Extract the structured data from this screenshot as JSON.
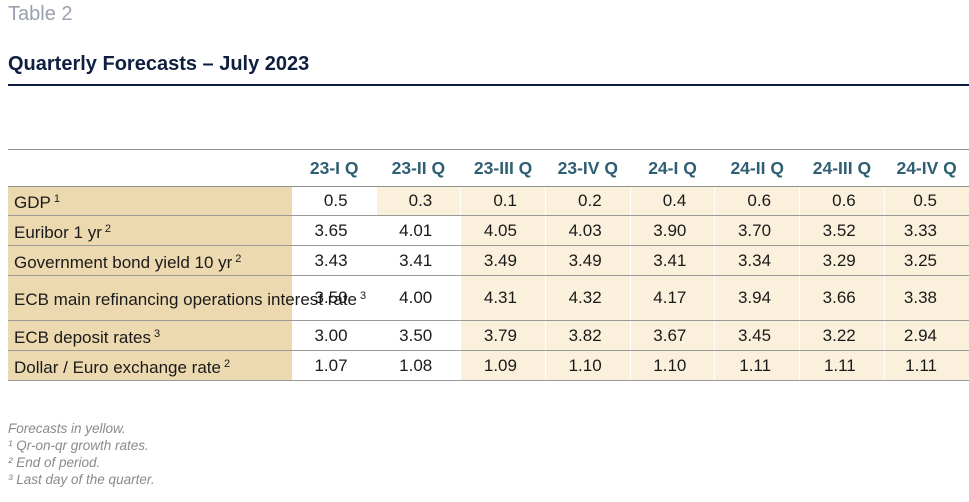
{
  "table_label": "Table 2",
  "title": "Quarterly Forecasts – July 2023",
  "columns": [
    "23-I Q",
    "23-II Q",
    "23-III Q",
    "23-IV Q",
    "24-I Q",
    "24-II Q",
    "24-III Q",
    "24-IV Q"
  ],
  "rows": [
    {
      "label": "GDP",
      "sup": "1",
      "values": [
        "0.5",
        "0.3",
        "0.1",
        "0.2",
        "0.4",
        "0.6",
        "0.6",
        "0.5"
      ],
      "forecast_from": 1
    },
    {
      "label": "Euribor 1 yr",
      "sup": "2",
      "values": [
        "3.65",
        "4.01",
        "4.05",
        "4.03",
        "3.90",
        "3.70",
        "3.52",
        "3.33"
      ],
      "forecast_from": 2
    },
    {
      "label": "Government bond yield 10 yr",
      "sup": "2",
      "values": [
        "3.43",
        "3.41",
        "3.49",
        "3.49",
        "3.41",
        "3.34",
        "3.29",
        "3.25"
      ],
      "forecast_from": 2
    },
    {
      "label": "ECB main refinancing operations interest rate",
      "sup": "3",
      "values": [
        "3.50",
        "4.00",
        "4.31",
        "4.32",
        "4.17",
        "3.94",
        "3.66",
        "3.38"
      ],
      "forecast_from": 2
    },
    {
      "label": "ECB deposit rates",
      "sup": "3",
      "values": [
        "3.00",
        "3.50",
        "3.79",
        "3.82",
        "3.67",
        "3.45",
        "3.22",
        "2.94"
      ],
      "forecast_from": 2
    },
    {
      "label": "Dollar / Euro exchange rate",
      "sup": "2",
      "values": [
        "1.07",
        "1.08",
        "1.09",
        "1.10",
        "1.10",
        "1.11",
        "1.11",
        "1.11"
      ],
      "forecast_from": 2
    }
  ],
  "notes": {
    "forecast_note": "Forecasts in yellow.",
    "fn1": "¹ Qr-on-qr growth rates.",
    "fn2": "² End of period.",
    "fn3": "³ Last day of the quarter."
  },
  "colors": {
    "title": "#0f1f3f",
    "header_text": "#2f5f72",
    "label_bg": "#ecd9b0",
    "forecast_bg": "#fbf0dc"
  }
}
